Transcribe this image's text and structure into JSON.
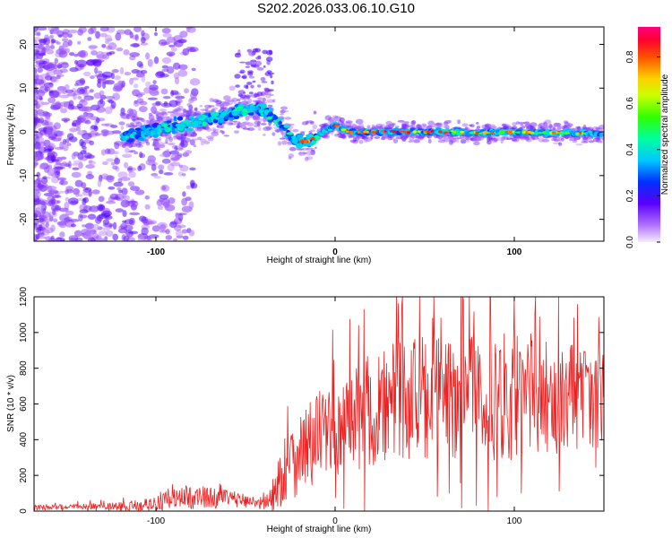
{
  "figure": {
    "title": "S202.2026.033.06.10.G10"
  },
  "chart_data": [
    {
      "type": "heatmap",
      "name": "spectrogram",
      "xlabel": "Height of straight line (km)",
      "ylabel": "Frequency (Hz)",
      "xlim": [
        -168,
        150
      ],
      "ylim": [
        -25,
        24
      ],
      "x_ticks": [
        -100,
        0,
        100
      ],
      "y_ticks": [
        -20,
        -10,
        0,
        10,
        20
      ],
      "colorbar": {
        "label": "Normalized spectral amplitude",
        "range": [
          0,
          0.93
        ],
        "ticks": [
          "0.0",
          "0.2",
          "0.4",
          "0.6",
          "0.8"
        ],
        "tick_values": [
          0.0,
          0.2,
          0.4,
          0.6,
          0.8
        ]
      },
      "ridge": {
        "x": [
          -115,
          -100,
          -85,
          -70,
          -60,
          -50,
          -42,
          -35,
          -28,
          -24,
          -20,
          -15,
          -10,
          -5,
          0,
          5,
          10,
          20,
          40,
          60,
          80,
          100,
          120,
          148
        ],
        "y": [
          -1,
          0.5,
          1.5,
          3,
          4,
          5,
          5.5,
          3.5,
          1,
          -1.5,
          -2,
          -2.2,
          -1,
          0.5,
          1.5,
          0.5,
          -0.2,
          0,
          0,
          0,
          -0.3,
          0,
          -0.2,
          -0.5
        ]
      }
    },
    {
      "type": "line",
      "name": "snr",
      "xlabel": "Height of straight line (km)",
      "ylabel": "SNR (10 * v/v)",
      "xlim": [
        -168,
        150
      ],
      "ylim": [
        0,
        1200
      ],
      "x_ticks": [
        -100,
        0,
        100
      ],
      "y_ticks": [
        0,
        200,
        400,
        600,
        800,
        1000,
        1200
      ],
      "series": [
        {
          "name": "SNR",
          "color": "#ee2020",
          "envelope": {
            "x": [
              -168,
              -140,
              -120,
              -100,
              -90,
              -80,
              -70,
              -60,
              -50,
              -45,
              -40,
              -35,
              -30,
              -25,
              -20,
              -10,
              0,
              10,
              20,
              30,
              40,
              50,
              60,
              70,
              80,
              90,
              100,
              110,
              120,
              130,
              140,
              150
            ],
            "mean": [
              20,
              22,
              25,
              40,
              70,
              80,
              75,
              70,
              60,
              50,
              45,
              70,
              200,
              280,
              330,
              400,
              470,
              520,
              560,
              600,
              620,
              630,
              640,
              650,
              660,
              670,
              660,
              650,
              640,
              640,
              640,
              620
            ],
            "amplitude": [
              15,
              20,
              25,
              40,
              60,
              70,
              60,
              50,
              40,
              30,
              40,
              100,
              180,
              220,
              240,
              260,
              280,
              300,
              320,
              330,
              340,
              350,
              350,
              360,
              380,
              400,
              380,
              350,
              330,
              320,
              300,
              280
            ]
          }
        }
      ]
    }
  ]
}
